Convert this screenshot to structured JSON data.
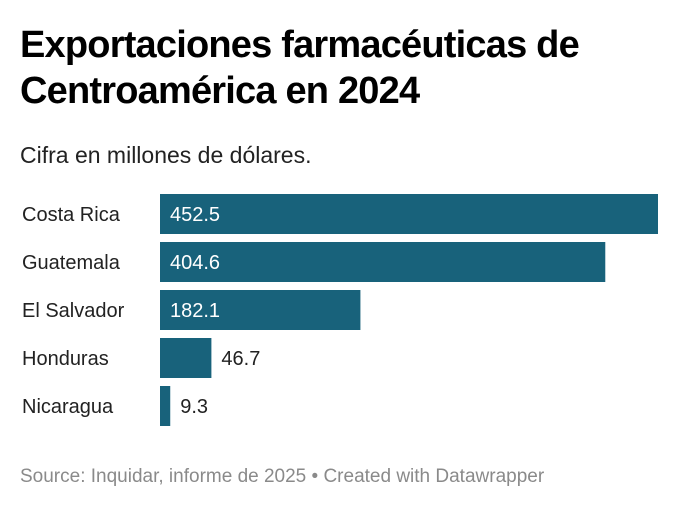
{
  "header": {
    "title": "Exportaciones farmacéuticas de Centroamérica en 2024",
    "subtitle": "Cifra en millones de dólares."
  },
  "footer": {
    "text": "Source: Inquidar, informe de 2025 • Created with Datawrapper"
  },
  "colors": {
    "bar": "#18627b",
    "label_inside": "#ffffff",
    "label_outside": "#222222"
  },
  "chart_data": {
    "type": "bar",
    "orientation": "horizontal",
    "title": "Exportaciones farmacéuticas de Centroamérica en 2024",
    "subtitle": "Cifra en millones de dólares.",
    "categories": [
      "Costa Rica",
      "Guatemala",
      "El Salvador",
      "Honduras",
      "Nicaragua"
    ],
    "values": [
      452.5,
      404.6,
      182.1,
      46.7,
      9.3
    ],
    "value_labels": [
      "452.5",
      "404.6",
      "182.1",
      "46.7",
      "9.3"
    ],
    "xlabel": "",
    "ylabel": "",
    "xlim": [
      0,
      452.5
    ],
    "grid": false,
    "legend": "none"
  }
}
